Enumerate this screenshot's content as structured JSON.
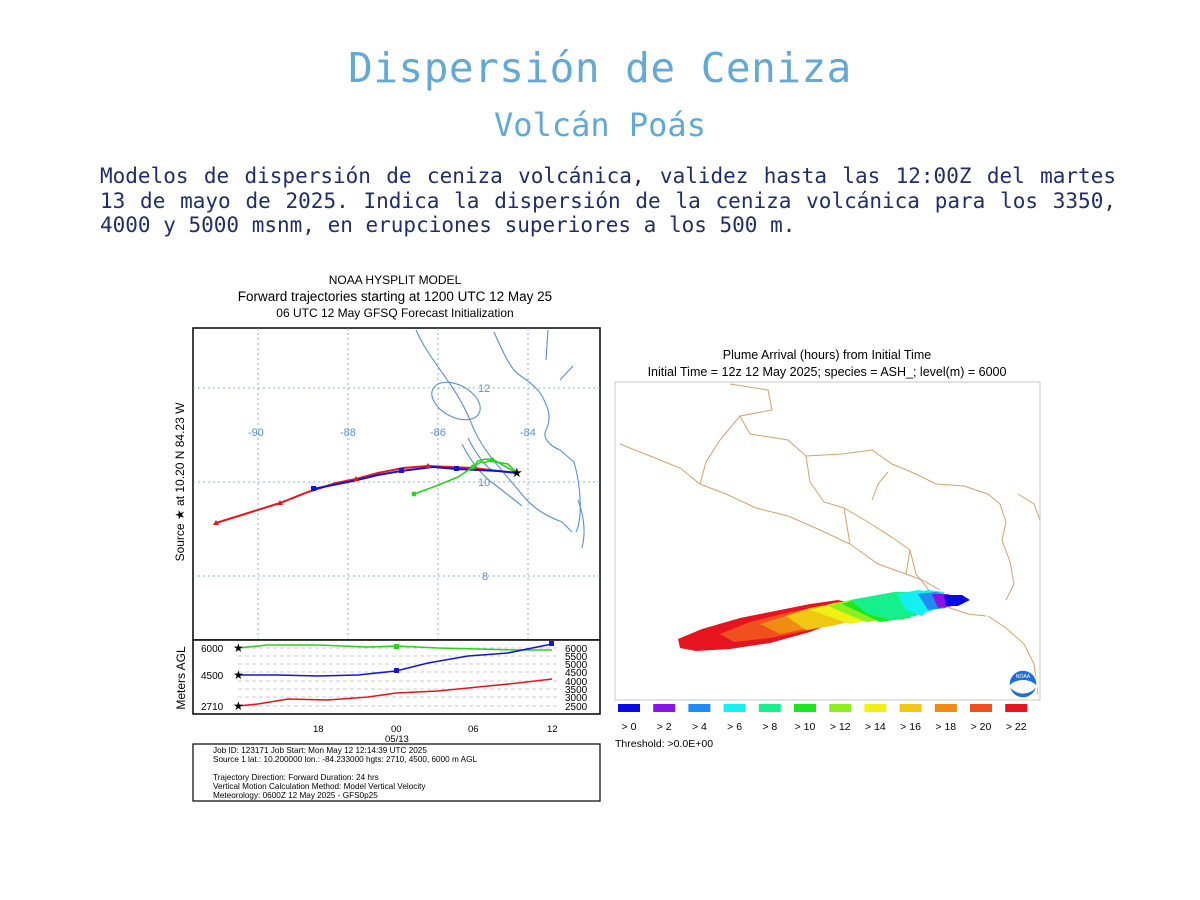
{
  "slide": {
    "title": "Dispersión de Ceniza",
    "subtitle": "Volcán Poás",
    "description": "Modelos de dispersión de ceniza volcánica, validez hasta las 12:00Z del martes 13 de mayo de 2025. Indica la dispersión de la ceniza volcánica para los 3350, 4000 y 5000 msnm, en erupciones superiores a los 500 m."
  },
  "hysplit": {
    "title1": "NOAA HYSPLIT MODEL",
    "title2": "Forward trajectories starting at 1200 UTC 12 May 25",
    "title3": "06 UTC 12 May    GFSQ  Forecast Initialization",
    "side_label": "Source ★  at   10.20 N   84.23 W",
    "lon_labels": [
      "-90",
      "-88",
      "-86",
      "-84"
    ],
    "lat_labels": [
      "12",
      "10",
      "8"
    ],
    "height_axis_label": "Meters AGL",
    "left_heights": [
      "6000",
      "4500",
      "2710"
    ],
    "right_heights": [
      "6000",
      "5500",
      "5000",
      "4500",
      "4000",
      "3500",
      "3000",
      "2500"
    ],
    "time_ticks": [
      "18",
      "00",
      "06",
      "12"
    ],
    "date_label": "05/13",
    "info_lines": [
      "Job ID: 123171                    Job Start: Mon May 12 12:14:39 UTC 2025",
      "Source 1 lat.: 10.200000  lon.: -84.233000  hgts: 2710, 4500, 6000 m AGL",
      "Trajectory Direction: Forward      Duration: 24 hrs",
      "Vertical Motion Calculation Method:      Model Vertical Velocity",
      "Meteorology: 0600Z 12 May 2025 - GFS0p25"
    ],
    "colors": {
      "red": "#e8141c",
      "blue": "#1414d2",
      "green": "#28d21e"
    }
  },
  "plume": {
    "title1": "Plume Arrival (hours) from Initial Time",
    "title2": "Initial Time = 12z 12 May 2025;  species = ASH_;  level(m) =  6000",
    "legend": [
      {
        "label": "> 0",
        "color": "#0a0ae6"
      },
      {
        "label": "> 2",
        "color": "#8a14e6"
      },
      {
        "label": "> 4",
        "color": "#1e8cf0"
      },
      {
        "label": "> 6",
        "color": "#14f0f0"
      },
      {
        "label": "> 8",
        "color": "#14f08c"
      },
      {
        "label": "> 10",
        "color": "#1ee61e"
      },
      {
        "label": "> 12",
        "color": "#8cf01e"
      },
      {
        "label": "> 14",
        "color": "#f0f014"
      },
      {
        "label": "> 16",
        "color": "#f0c814"
      },
      {
        "label": "> 18",
        "color": "#f08c14"
      },
      {
        "label": "> 20",
        "color": "#f0501e"
      },
      {
        "label": "> 22",
        "color": "#e6141e"
      }
    ],
    "threshold": "Threshold: >0.0E+00",
    "logo_text": "NOAA"
  }
}
